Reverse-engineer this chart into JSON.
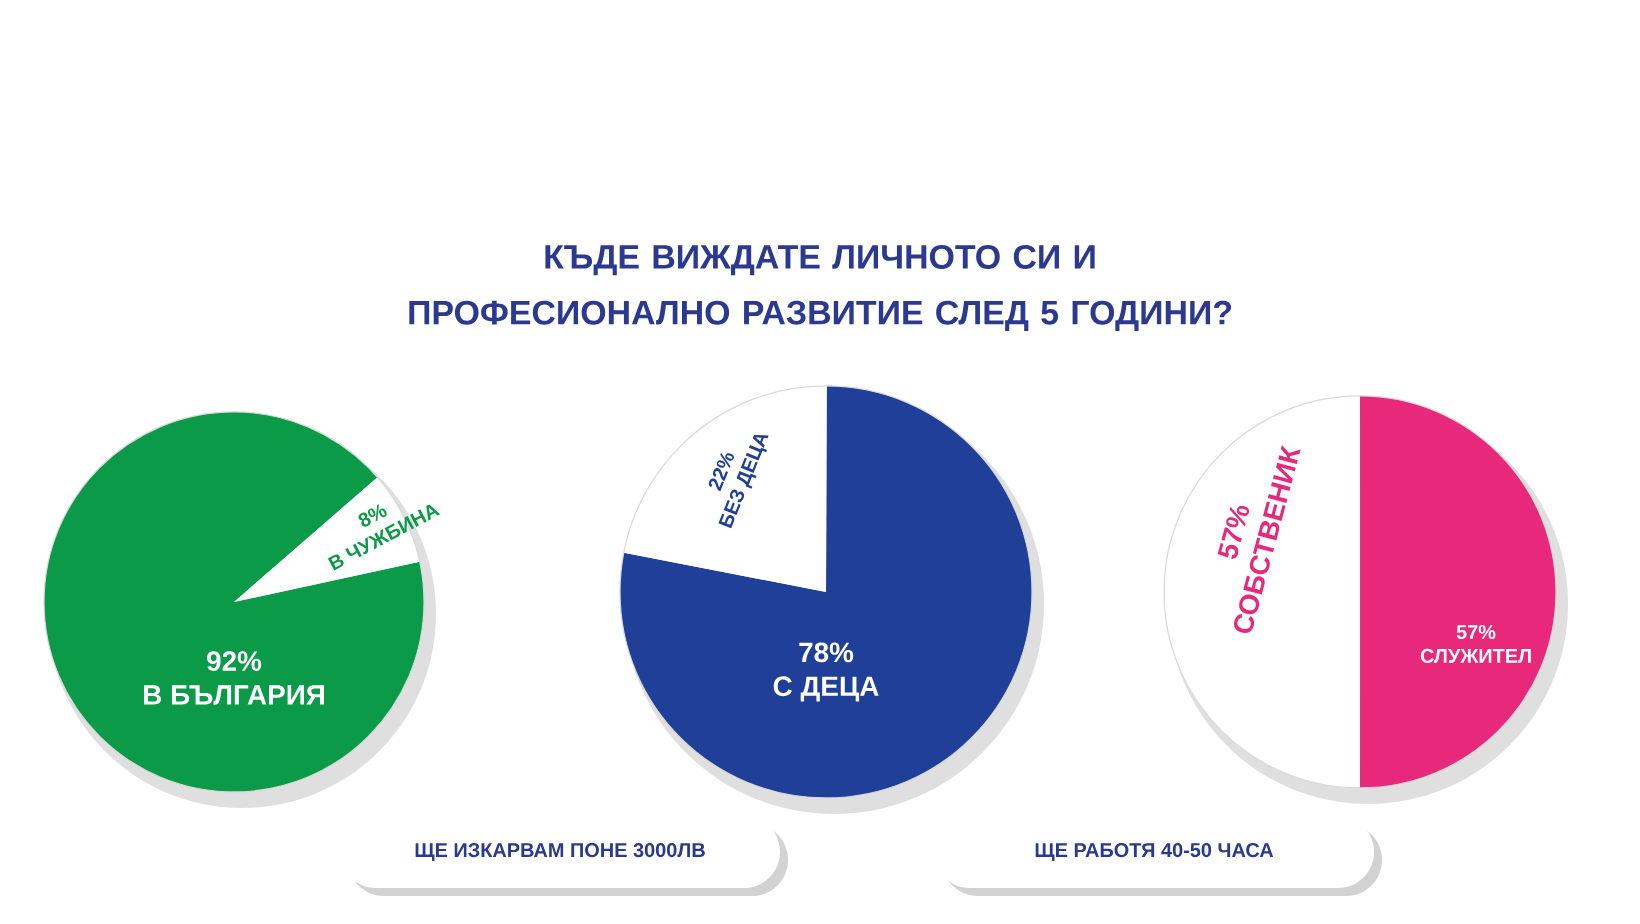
{
  "chart_data": [
    {
      "type": "other",
      "title": "КЪДЕ ВИЖДАТЕ ЛИЧНОТО СИ И ПРОФЕСИОНАЛНО РАЗВИТИЕ СЛЕД 5 ГОДИНИ?",
      "annotations": [
        "ЩЕ ИЗКАРВАМ ПОНЕ  3000ЛВ",
        "ЩЕ РАБОТЯ 40-50 ЧАСА"
      ]
    },
    {
      "type": "pie",
      "categories": [
        "В БЪЛГАРИЯ",
        "В ЧУЖБИНА"
      ],
      "values": [
        92,
        8
      ],
      "colors": [
        "#0a9a48",
        "#ffffff"
      ],
      "value_labels": [
        "92%",
        "8%"
      ]
    },
    {
      "type": "pie",
      "categories": [
        "С ДЕЦА",
        "БЕЗ ДЕЦА"
      ],
      "values": [
        78,
        22
      ],
      "colors": [
        "#1f3f98",
        "#ffffff"
      ],
      "value_labels": [
        "78%",
        "22%"
      ]
    },
    {
      "type": "pie",
      "categories": [
        "СЛУЖИТЕЛ",
        "СОБСТВЕНИК"
      ],
      "values": [
        57,
        57
      ],
      "colors": [
        "#e8287a",
        "#ffffff"
      ],
      "value_labels": [
        "57%",
        "57%"
      ]
    }
  ]
}
